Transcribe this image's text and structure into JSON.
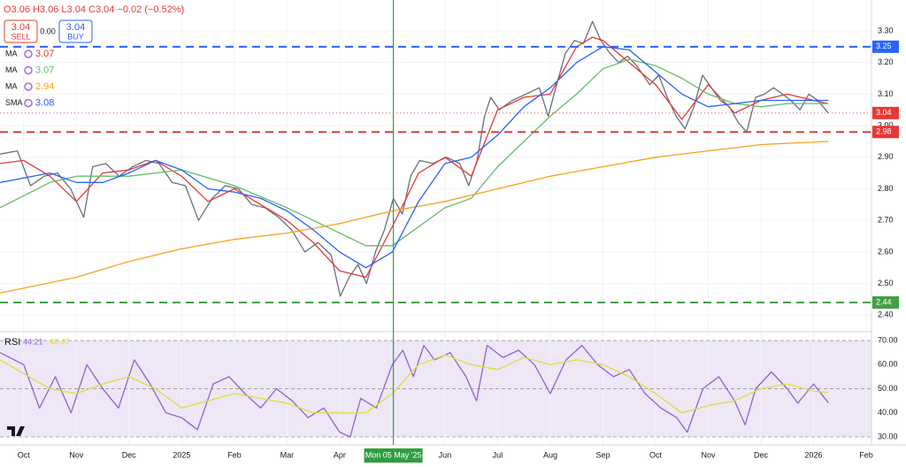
{
  "toolbar": {
    "ohlc": "O3.06 H3.06 L3.04 C3.04 −0.02 (−0.52%)",
    "sell_price": "3.04",
    "sell": "SELL",
    "spread": "0.00",
    "buy_price": "3.04",
    "buy": "BUY"
  },
  "chart_data": [
    {
      "type": "line",
      "grid": true,
      "xlim": [
        -0.45,
        16.1
      ],
      "xticks": [
        {
          "value": 0,
          "label": "Oct"
        },
        {
          "value": 1,
          "label": "Nov"
        },
        {
          "value": 2,
          "label": "Dec"
        },
        {
          "value": 3,
          "label": "2025"
        },
        {
          "value": 4,
          "label": "Feb"
        },
        {
          "value": 5,
          "label": "Mar"
        },
        {
          "value": 6,
          "label": "Apr"
        },
        {
          "value": 8,
          "label": "Jun"
        },
        {
          "value": 9,
          "label": "Jul"
        },
        {
          "value": 10,
          "label": "Aug"
        },
        {
          "value": 11,
          "label": "Sep"
        },
        {
          "value": 12,
          "label": "Oct"
        },
        {
          "value": 13,
          "label": "Nov"
        },
        {
          "value": 14,
          "label": "Dec"
        },
        {
          "value": 15,
          "label": "2026"
        },
        {
          "value": 16,
          "label": "Feb"
        }
      ],
      "crosshair": {
        "value": 7.02,
        "label": "Mon 05 May '25"
      },
      "ylim": [
        2.356,
        3.398
      ],
      "yticks": [
        {
          "value": 2.4,
          "label": "2.40"
        },
        {
          "value": 2.5,
          "label": "2.50"
        },
        {
          "value": 2.6,
          "label": "2.60"
        },
        {
          "value": 2.7,
          "label": "2.70"
        },
        {
          "value": 2.8,
          "label": "2.80"
        },
        {
          "value": 2.9,
          "label": "2.90"
        },
        {
          "value": 3.0,
          "label": "3.00"
        },
        {
          "value": 3.1,
          "label": "3.10"
        },
        {
          "value": 3.2,
          "label": "3.20"
        },
        {
          "value": 3.3,
          "label": "3.30"
        }
      ],
      "hlines": [
        {
          "value": 3.25,
          "color": "#2962ff"
        },
        {
          "value": 2.98,
          "color": "#e53935"
        },
        {
          "value": 2.44,
          "color": "#43a047"
        }
      ],
      "last_price": 3.04,
      "last_color": "#e53935",
      "series": [
        {
          "color": "#6b6f7b",
          "x": [
            -0.45,
            -0.12,
            0.13,
            0.39,
            0.64,
            0.89,
            1.14,
            1.31,
            1.56,
            1.81,
            2.07,
            2.32,
            2.57,
            2.82,
            3.07,
            3.32,
            3.58,
            3.83,
            4.08,
            4.33,
            4.58,
            4.84,
            5.09,
            5.34,
            5.59,
            5.84,
            6.01,
            6.18,
            6.35,
            6.51,
            6.68,
            6.85,
            7.02,
            7.19,
            7.35,
            7.52,
            7.77,
            8.03,
            8.28,
            8.45,
            8.61,
            8.75,
            8.87,
            9.03,
            9.28,
            9.54,
            9.79,
            9.96,
            10.12,
            10.29,
            10.46,
            10.63,
            10.8,
            10.96,
            11.13,
            11.3,
            11.47,
            11.64,
            11.89,
            12.06,
            12.22,
            12.39,
            12.56,
            12.73,
            12.89,
            13.06,
            13.23,
            13.4,
            13.57,
            13.73,
            13.9,
            14.07,
            14.24,
            14.41,
            14.57,
            14.74,
            14.91,
            15.08,
            15.28
          ],
          "values": [
            2.91,
            2.92,
            2.81,
            2.84,
            2.85,
            2.8,
            2.71,
            2.87,
            2.88,
            2.84,
            2.87,
            2.89,
            2.88,
            2.82,
            2.81,
            2.7,
            2.77,
            2.81,
            2.8,
            2.75,
            2.74,
            2.71,
            2.67,
            2.6,
            2.63,
            2.59,
            2.46,
            2.52,
            2.56,
            2.5,
            2.6,
            2.67,
            2.77,
            2.72,
            2.84,
            2.89,
            2.88,
            2.9,
            2.88,
            2.81,
            2.89,
            3.03,
            3.09,
            3.05,
            3.08,
            3.1,
            3.12,
            3.03,
            3.13,
            3.23,
            3.27,
            3.26,
            3.33,
            3.27,
            3.23,
            3.2,
            3.22,
            3.19,
            3.13,
            3.16,
            3.09,
            3.03,
            2.99,
            3.06,
            3.16,
            3.12,
            3.08,
            3.06,
            3.01,
            2.98,
            3.09,
            3.1,
            3.12,
            3.1,
            3.08,
            3.05,
            3.1,
            3.08,
            3.04
          ]
        },
        {
          "name": "MA",
          "legend_value": 3.07,
          "color": "#e53935",
          "x": [
            -0.45,
            0,
            0.5,
            1,
            1.5,
            2,
            2.5,
            3,
            3.5,
            4,
            4.5,
            5,
            5.5,
            6,
            6.5,
            7,
            7.5,
            8,
            8.5,
            9,
            9.5,
            10,
            10.5,
            10.8,
            11,
            11.5,
            12,
            12.5,
            13,
            13.5,
            14,
            14.5,
            15,
            15.28
          ],
          "values": [
            2.88,
            2.89,
            2.84,
            2.76,
            2.85,
            2.86,
            2.89,
            2.84,
            2.76,
            2.8,
            2.75,
            2.7,
            2.63,
            2.54,
            2.52,
            2.68,
            2.85,
            2.9,
            2.84,
            3.05,
            3.09,
            3.1,
            3.25,
            3.28,
            3.27,
            3.2,
            3.13,
            3.02,
            3.13,
            3.04,
            3.08,
            3.1,
            3.08,
            3.07
          ]
        },
        {
          "name": "MA",
          "legend_value": 3.07,
          "color": "#66bb6a",
          "x": [
            -0.45,
            0.5,
            1,
            2,
            3,
            4,
            5,
            6,
            6.5,
            7,
            7.5,
            8,
            8.5,
            9,
            9.5,
            10,
            10.5,
            11,
            11.5,
            12,
            12.5,
            13,
            13.5,
            14,
            14.5,
            15,
            15.28
          ],
          "values": [
            2.74,
            2.82,
            2.84,
            2.84,
            2.86,
            2.81,
            2.74,
            2.66,
            2.62,
            2.62,
            2.68,
            2.74,
            2.77,
            2.87,
            2.95,
            3.03,
            3.1,
            3.18,
            3.21,
            3.19,
            3.15,
            3.1,
            3.07,
            3.06,
            3.07,
            3.07,
            3.07
          ]
        },
        {
          "name": "MA",
          "legend_value": 2.94,
          "color": "#f7a21b",
          "x": [
            -0.45,
            1,
            2,
            3,
            4,
            5,
            6,
            7,
            8,
            9,
            10,
            11,
            12,
            13,
            14,
            15.28
          ],
          "values": [
            2.47,
            2.52,
            2.57,
            2.61,
            2.64,
            2.66,
            2.69,
            2.73,
            2.76,
            2.8,
            2.84,
            2.87,
            2.9,
            2.92,
            2.94,
            2.95
          ]
        },
        {
          "name": "SMA",
          "legend_value": 3.08,
          "color": "#2962ff",
          "x": [
            -0.45,
            0.5,
            1,
            1.5,
            2,
            2.5,
            3,
            3.5,
            4,
            4.5,
            5,
            5.5,
            6,
            6.5,
            7,
            7.5,
            8,
            8.5,
            9,
            9.5,
            10,
            10.5,
            11,
            11.5,
            12,
            12.5,
            13,
            13.5,
            14,
            14.5,
            15,
            15.28
          ],
          "values": [
            2.82,
            2.85,
            2.82,
            2.82,
            2.85,
            2.89,
            2.86,
            2.8,
            2.79,
            2.77,
            2.73,
            2.67,
            2.6,
            2.55,
            2.6,
            2.76,
            2.88,
            2.9,
            2.97,
            3.06,
            3.12,
            3.2,
            3.25,
            3.24,
            3.17,
            3.1,
            3.06,
            3.07,
            3.08,
            3.08,
            3.08,
            3.08
          ]
        }
      ]
    },
    {
      "type": "line",
      "title": "RSI",
      "ylim": [
        26.7,
        72.6
      ],
      "yticks": [
        {
          "value": 30,
          "label": "30.00"
        },
        {
          "value": 40,
          "label": "40.00"
        },
        {
          "value": 50,
          "label": "50.00"
        },
        {
          "value": 60,
          "label": "60.00"
        },
        {
          "value": 70,
          "label": "70.00"
        }
      ],
      "bands": [
        30,
        50,
        70
      ],
      "series": [
        {
          "legend_value": 44.21,
          "color": "#9162d1",
          "x": [
            -0.45,
            0,
            0.3,
            0.6,
            0.9,
            1.2,
            1.5,
            1.8,
            2.1,
            2.4,
            2.7,
            3,
            3.3,
            3.6,
            3.9,
            4.2,
            4.5,
            4.8,
            5.1,
            5.4,
            5.7,
            6,
            6.2,
            6.4,
            6.7,
            7,
            7.2,
            7.4,
            7.6,
            7.8,
            8.1,
            8.4,
            8.6,
            8.8,
            9.1,
            9.4,
            9.7,
            10,
            10.3,
            10.6,
            10.9,
            11.2,
            11.5,
            11.8,
            12.1,
            12.4,
            12.6,
            12.9,
            13.2,
            13.5,
            13.7,
            13.9,
            14.2,
            14.5,
            14.7,
            15,
            15.28
          ],
          "values": [
            65,
            60,
            42,
            55,
            40,
            60,
            50,
            42,
            62,
            52,
            40,
            38,
            33,
            52,
            55,
            48,
            42,
            50,
            45,
            38,
            42,
            32,
            30,
            46,
            42,
            60,
            66,
            55,
            68,
            62,
            65,
            55,
            45,
            68,
            63,
            66,
            60,
            48,
            62,
            68,
            60,
            55,
            58,
            48,
            42,
            38,
            32,
            50,
            55,
            45,
            35,
            50,
            57,
            50,
            44,
            52,
            44.21
          ]
        },
        {
          "legend_value": 48.47,
          "color": "#e3dc3c",
          "x": [
            -0.45,
            0.5,
            1,
            1.5,
            2,
            2.5,
            3,
            3.5,
            4,
            4.5,
            5,
            5.5,
            6,
            6.5,
            7,
            7.5,
            8,
            8.5,
            9,
            9.5,
            10,
            10.5,
            11,
            11.5,
            12,
            12.5,
            13,
            13.5,
            14,
            14.5,
            15,
            15.28
          ],
          "values": [
            62,
            50,
            48,
            52,
            55,
            50,
            42,
            45,
            48,
            46,
            44,
            40,
            40,
            40,
            48,
            60,
            64,
            60,
            58,
            63,
            60,
            62,
            60,
            55,
            48,
            40,
            43,
            45,
            50,
            52,
            49,
            48.47
          ]
        }
      ]
    }
  ]
}
